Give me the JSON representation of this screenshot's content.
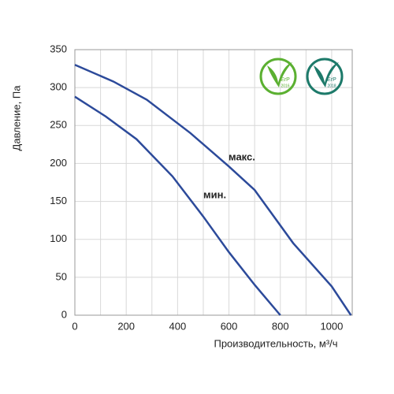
{
  "chart_data": {
    "type": "line",
    "x_label": "Производительность, м³/ч",
    "y_label": "Давление, Па",
    "series": [
      {
        "name": "макс.",
        "color": "#2c4a9a",
        "x": [
          0,
          150,
          280,
          450,
          600,
          700,
          850,
          1000,
          1075
        ],
        "values": [
          330,
          308,
          284,
          240,
          196,
          165,
          95,
          38,
          0
        ]
      },
      {
        "name": "мин.",
        "color": "#2c4a9a",
        "x": [
          0,
          120,
          240,
          380,
          500,
          600,
          700,
          800
        ],
        "values": [
          288,
          262,
          232,
          183,
          130,
          83,
          40,
          0
        ]
      }
    ],
    "xlim": [
      0,
      1080
    ],
    "ylim": [
      0,
      350
    ],
    "xticks": [
      0,
      200,
      400,
      600,
      800,
      1000
    ],
    "x_minor_grid": [
      100,
      300,
      500,
      700,
      900
    ],
    "yticks": [
      0,
      50,
      100,
      150,
      200,
      250,
      300,
      350
    ],
    "grid": true
  },
  "badges": [
    {
      "label": "ErP",
      "year": "2016",
      "color": "#5bb031"
    },
    {
      "label": "ErP",
      "year": "2018",
      "color": "#1d7a6a"
    }
  ]
}
